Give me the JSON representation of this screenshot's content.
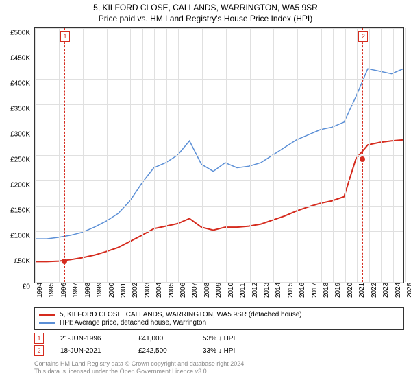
{
  "title": "5, KILFORD CLOSE, CALLANDS, WARRINGTON, WA5 9SR",
  "subtitle": "Price paid vs. HM Land Registry's House Price Index (HPI)",
  "chart": {
    "type": "line",
    "background_color": "#ffffff",
    "grid_color": "#e0e0e0",
    "xlim": [
      1994,
      2025
    ],
    "ylim": [
      0,
      500000
    ],
    "ytick_step": 50000,
    "y_ticks": [
      "£0",
      "£50K",
      "£100K",
      "£150K",
      "£200K",
      "£250K",
      "£300K",
      "£350K",
      "£400K",
      "£450K",
      "£500K"
    ],
    "x_ticks": [
      "1994",
      "1995",
      "1996",
      "1997",
      "1998",
      "1999",
      "2000",
      "2001",
      "2002",
      "2003",
      "2004",
      "2005",
      "2006",
      "2007",
      "2008",
      "2009",
      "2010",
      "2011",
      "2012",
      "2013",
      "2014",
      "2015",
      "2016",
      "2017",
      "2018",
      "2019",
      "2020",
      "2021",
      "2022",
      "2023",
      "2024",
      "2025"
    ],
    "series": [
      {
        "name": "price_paid",
        "color": "#d52b1e",
        "line_width": 2,
        "years": [
          1994,
          1995,
          1996,
          1997,
          1998,
          1999,
          2000,
          2001,
          2002,
          2003,
          2004,
          2005,
          2006,
          2007,
          2008,
          2009,
          2010,
          2011,
          2012,
          2013,
          2014,
          2015,
          2016,
          2017,
          2018,
          2019,
          2020,
          2021,
          2022,
          2023,
          2024,
          2025
        ],
        "values": [
          40000,
          40000,
          41000,
          44000,
          48000,
          53000,
          60000,
          68000,
          80000,
          92000,
          105000,
          110000,
          115000,
          125000,
          108000,
          102000,
          108000,
          108000,
          110000,
          114000,
          122000,
          130000,
          140000,
          148000,
          155000,
          160000,
          168000,
          242500,
          270000,
          275000,
          278000,
          280000
        ]
      },
      {
        "name": "hpi",
        "color": "#5b8fd6",
        "line_width": 1.5,
        "years": [
          1994,
          1995,
          1996,
          1997,
          1998,
          1999,
          2000,
          2001,
          2002,
          2003,
          2004,
          2005,
          2006,
          2007,
          2008,
          2009,
          2010,
          2011,
          2012,
          2013,
          2014,
          2015,
          2016,
          2017,
          2018,
          2019,
          2020,
          2021,
          2022,
          2023,
          2024,
          2025
        ],
        "values": [
          85000,
          85000,
          88000,
          92000,
          98000,
          108000,
          120000,
          135000,
          160000,
          195000,
          225000,
          235000,
          250000,
          278000,
          232000,
          218000,
          235000,
          225000,
          228000,
          235000,
          250000,
          265000,
          280000,
          290000,
          300000,
          305000,
          315000,
          365000,
          420000,
          415000,
          410000,
          420000
        ]
      }
    ],
    "markers": [
      {
        "id": "1",
        "year": 1996.47,
        "value": 41000,
        "color": "#d52b1e"
      },
      {
        "id": "2",
        "year": 2021.46,
        "value": 242500,
        "color": "#d52b1e"
      }
    ]
  },
  "legend": {
    "items": [
      {
        "color": "#d52b1e",
        "label": "5, KILFORD CLOSE, CALLANDS, WARRINGTON, WA5 9SR (detached house)"
      },
      {
        "color": "#5b8fd6",
        "label": "HPI: Average price, detached house, Warrington"
      }
    ]
  },
  "sales": [
    {
      "id": "1",
      "color": "#d52b1e",
      "date": "21-JUN-1996",
      "price": "£41,000",
      "delta": "53% ↓ HPI"
    },
    {
      "id": "2",
      "color": "#d52b1e",
      "date": "18-JUN-2021",
      "price": "£242,500",
      "delta": "33% ↓ HPI"
    }
  ],
  "footer": {
    "line1": "Contains HM Land Registry data © Crown copyright and database right 2024.",
    "line2": "This data is licensed under the Open Government Licence v3.0."
  }
}
